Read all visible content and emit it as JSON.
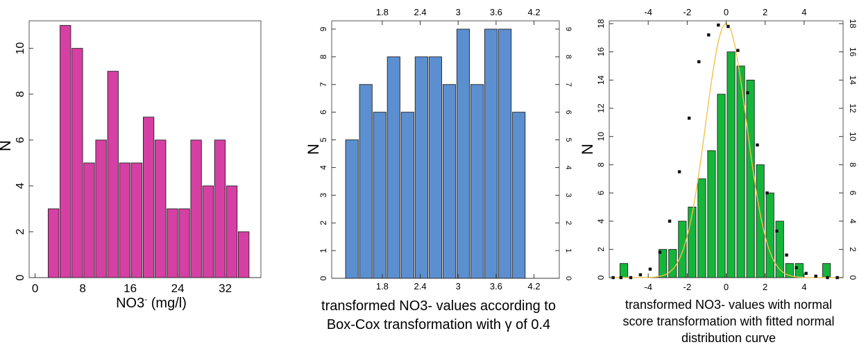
{
  "chart_data": [
    {
      "type": "bar",
      "bar_color": "#d63fa3",
      "ylabel": "N",
      "xlabel_main": "NO3",
      "xlabel_sup": "-",
      "xlabel_unit": " (mg/l)",
      "xlim": [
        -1,
        38
      ],
      "ylim": [
        0,
        11.2
      ],
      "xticks": [
        0,
        8,
        16,
        24,
        32
      ],
      "yticks": [
        0,
        2,
        4,
        6,
        8,
        10
      ],
      "bars": [
        {
          "x0": 2.2,
          "x1": 4.0,
          "v": 3
        },
        {
          "x0": 4.2,
          "x1": 6.0,
          "v": 11
        },
        {
          "x0": 6.2,
          "x1": 8.0,
          "v": 10
        },
        {
          "x0": 8.2,
          "x1": 10.0,
          "v": 5
        },
        {
          "x0": 10.2,
          "x1": 12.0,
          "v": 6
        },
        {
          "x0": 12.2,
          "x1": 14.0,
          "v": 9
        },
        {
          "x0": 14.2,
          "x1": 16.0,
          "v": 5
        },
        {
          "x0": 16.2,
          "x1": 18.0,
          "v": 5
        },
        {
          "x0": 18.2,
          "x1": 20.0,
          "v": 7
        },
        {
          "x0": 20.2,
          "x1": 22.0,
          "v": 6
        },
        {
          "x0": 22.2,
          "x1": 24.0,
          "v": 3
        },
        {
          "x0": 24.2,
          "x1": 26.0,
          "v": 3
        },
        {
          "x0": 26.2,
          "x1": 28.0,
          "v": 6
        },
        {
          "x0": 28.2,
          "x1": 30.0,
          "v": 4
        },
        {
          "x0": 30.2,
          "x1": 32.0,
          "v": 6
        },
        {
          "x0": 32.2,
          "x1": 34.0,
          "v": 4
        },
        {
          "x0": 34.2,
          "x1": 36.0,
          "v": 2
        }
      ]
    },
    {
      "type": "bar",
      "bar_color": "#5b8fd0",
      "ylabel": "N",
      "caption": [
        "transformed NO3- values according to",
        "Box-Cox transformation with γ of 0.4"
      ],
      "xlim": [
        1.0,
        4.6
      ],
      "ylim": [
        0,
        9.3
      ],
      "xticks": [
        1.8,
        2.4,
        3,
        3.6,
        4.2
      ],
      "xtick_labels": [
        "1.8",
        "2.4",
        "3",
        "3.6",
        "4.2"
      ],
      "yticks": [
        0,
        1,
        2,
        3,
        4,
        5,
        6,
        7,
        8,
        9
      ],
      "bars": [
        {
          "x0": 1.22,
          "x1": 1.42,
          "v": 5
        },
        {
          "x0": 1.44,
          "x1": 1.64,
          "v": 7
        },
        {
          "x0": 1.66,
          "x1": 1.86,
          "v": 6
        },
        {
          "x0": 1.88,
          "x1": 2.08,
          "v": 8
        },
        {
          "x0": 2.1,
          "x1": 2.3,
          "v": 6
        },
        {
          "x0": 2.32,
          "x1": 2.52,
          "v": 8
        },
        {
          "x0": 2.54,
          "x1": 2.74,
          "v": 8
        },
        {
          "x0": 2.76,
          "x1": 2.96,
          "v": 7
        },
        {
          "x0": 2.98,
          "x1": 3.18,
          "v": 9
        },
        {
          "x0": 3.2,
          "x1": 3.4,
          "v": 7
        },
        {
          "x0": 3.42,
          "x1": 3.62,
          "v": 9
        },
        {
          "x0": 3.64,
          "x1": 3.84,
          "v": 9
        },
        {
          "x0": 3.86,
          "x1": 4.06,
          "v": 6
        }
      ]
    },
    {
      "type": "bar",
      "bar_color": "#14b63a",
      "ylabel": "N",
      "caption": [
        "transformed NO3- values with normal",
        "score transformation with fitted normal",
        "distribution curve"
      ],
      "xlim": [
        -6,
        6
      ],
      "ylim": [
        0,
        18.2
      ],
      "xticks": [
        -4,
        -2,
        0,
        2,
        4
      ],
      "yticks": [
        0,
        2,
        4,
        6,
        8,
        10,
        12,
        14,
        16,
        18
      ],
      "curve_color": "#f0c24a",
      "curve": {
        "peak": 18,
        "mean": 0,
        "sd": 1.05
      },
      "bars": [
        {
          "x0": -5.45,
          "x1": -5.05,
          "v": 1
        },
        {
          "x0": -3.45,
          "x1": -3.05,
          "v": 2
        },
        {
          "x0": -2.95,
          "x1": -2.55,
          "v": 2
        },
        {
          "x0": -2.45,
          "x1": -2.05,
          "v": 4
        },
        {
          "x0": -1.95,
          "x1": -1.55,
          "v": 5
        },
        {
          "x0": -1.45,
          "x1": -1.05,
          "v": 7
        },
        {
          "x0": -0.95,
          "x1": -0.55,
          "v": 9
        },
        {
          "x0": -0.45,
          "x1": -0.05,
          "v": 13
        },
        {
          "x0": 0.05,
          "x1": 0.45,
          "v": 16
        },
        {
          "x0": 0.55,
          "x1": 0.95,
          "v": 15
        },
        {
          "x0": 1.05,
          "x1": 1.45,
          "v": 14
        },
        {
          "x0": 1.55,
          "x1": 1.95,
          "v": 8
        },
        {
          "x0": 2.05,
          "x1": 2.45,
          "v": 6
        },
        {
          "x0": 2.55,
          "x1": 2.95,
          "v": 4
        },
        {
          "x0": 3.05,
          "x1": 3.45,
          "v": 1
        },
        {
          "x0": 3.55,
          "x1": 3.95,
          "v": 1
        },
        {
          "x0": 4.95,
          "x1": 5.35,
          "v": 1
        }
      ],
      "markers": [
        {
          "x": -5.8,
          "y": 0
        },
        {
          "x": -5.4,
          "y": 0
        },
        {
          "x": -4.9,
          "y": 0
        },
        {
          "x": -4.4,
          "y": 0.2
        },
        {
          "x": -3.9,
          "y": 0.6
        },
        {
          "x": -3.4,
          "y": 1.8
        },
        {
          "x": -2.9,
          "y": 4
        },
        {
          "x": -2.4,
          "y": 7.5
        },
        {
          "x": -1.9,
          "y": 11.3
        },
        {
          "x": -1.4,
          "y": 15.3
        },
        {
          "x": -0.9,
          "y": 17.2
        },
        {
          "x": -0.4,
          "y": 17.9
        },
        {
          "x": 0.1,
          "y": 17.8
        },
        {
          "x": 0.6,
          "y": 16.1
        },
        {
          "x": 1.1,
          "y": 13.1
        },
        {
          "x": 1.6,
          "y": 9.4
        },
        {
          "x": 2.1,
          "y": 6
        },
        {
          "x": 2.6,
          "y": 3.3
        },
        {
          "x": 3.1,
          "y": 1.6
        },
        {
          "x": 3.6,
          "y": 0.7
        },
        {
          "x": 4.1,
          "y": 0.3
        },
        {
          "x": 4.6,
          "y": 0.1
        },
        {
          "x": 5.2,
          "y": 0
        },
        {
          "x": 5.7,
          "y": 0
        }
      ]
    }
  ]
}
